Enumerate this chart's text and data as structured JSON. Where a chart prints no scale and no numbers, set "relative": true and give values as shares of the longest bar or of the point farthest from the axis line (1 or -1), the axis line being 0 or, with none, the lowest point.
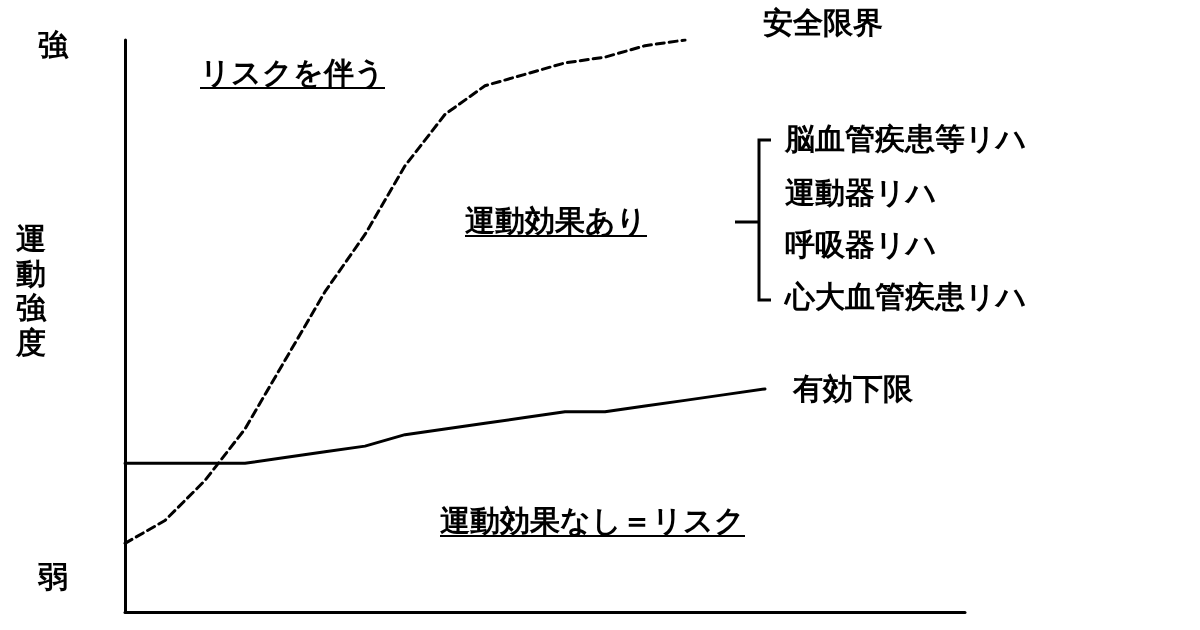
{
  "chart_data": {
    "type": "line",
    "relative": true,
    "ylabel": "運動強度",
    "categories": [
      null,
      null,
      null,
      null,
      null,
      null,
      null,
      null,
      null,
      null,
      null,
      null,
      null,
      null,
      null,
      null,
      null,
      null,
      null,
      null,
      null,
      null
    ],
    "series": [
      {
        "name": "安全限界",
        "color": "#000000",
        "line_style": "dashed",
        "values": [
          0.12,
          0.16,
          0.23,
          0.32,
          0.44,
          0.56,
          0.66,
          0.78,
          0.87,
          0.92,
          0.94,
          0.96,
          0.97,
          0.99,
          1,
          null,
          null,
          null,
          null,
          null,
          null,
          null
        ]
      },
      {
        "name": "有効下限",
        "color": "#000000",
        "line_style": "solid",
        "values": [
          0.26,
          0.26,
          0.26,
          0.26,
          0.27,
          0.28,
          0.29,
          0.31,
          0.32,
          0.33,
          0.34,
          0.35,
          0.35,
          0.36,
          0.37,
          0.38,
          0.39,
          null,
          null,
          null,
          null,
          null
        ]
      }
    ],
    "annotations": [
      "強",
      "弱",
      "リスクを伴う",
      "運動効果あり",
      "脳血管疾患等リハ",
      "運動器リハ",
      "呼吸器リハ",
      "心大血管疾患リハ",
      "運動効果なし＝リスク"
    ],
    "marker": "none",
    "grid": false,
    "legend": false
  }
}
